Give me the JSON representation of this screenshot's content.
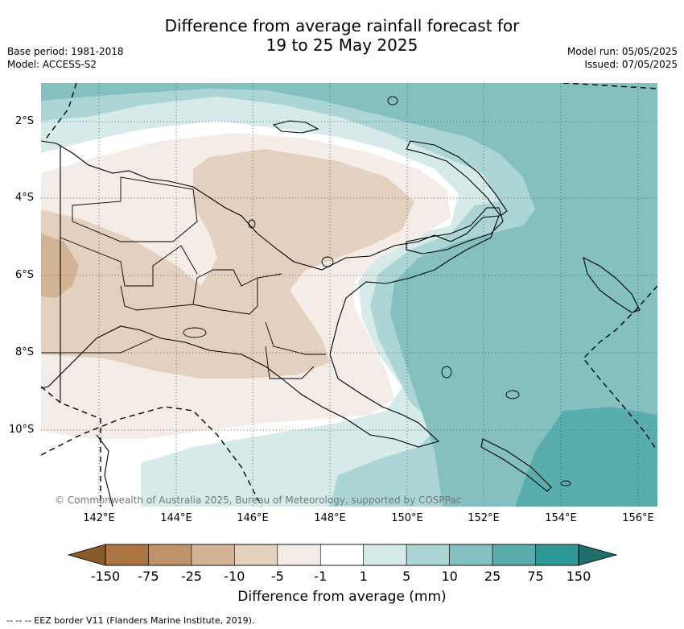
{
  "header": {
    "title_line1": "Difference from average rainfall forecast for",
    "title_line2": "19 to 25 May 2025",
    "base_period": "Base period: 1981-2018",
    "model": "Model: ACCESS-S2",
    "model_run": "Model run: 05/05/2025",
    "issued": "Issued: 07/05/2025"
  },
  "map": {
    "lat_labels": [
      "2°S",
      "4°S",
      "6°S",
      "8°S",
      "10°S"
    ],
    "lon_labels": [
      "142°E",
      "144°E",
      "146°E",
      "148°E",
      "150°E",
      "152°E",
      "154°E",
      "156°E"
    ],
    "copyright": "© Commonwealth of Australia 2025, Bureau of Meteorology, supported by COSPPac"
  },
  "colorbar": {
    "ticks": [
      "-150",
      "-75",
      "-25",
      "-10",
      "-5",
      "-1",
      "1",
      "5",
      "10",
      "25",
      "75",
      "150"
    ],
    "colors": [
      "#8b5a2b",
      "#ab7440",
      "#bf936a",
      "#d3b495",
      "#e4d0bf",
      "#f4ede7",
      "#ffffff",
      "#d6eae9",
      "#acd6d5",
      "#85c0c0",
      "#5aadad",
      "#2e9896",
      "#1f6e6c"
    ],
    "label": "Difference from average (mm)"
  },
  "footnote": "--  --  -- EEZ border V11 (Flanders Marine Institute, 2019)."
}
